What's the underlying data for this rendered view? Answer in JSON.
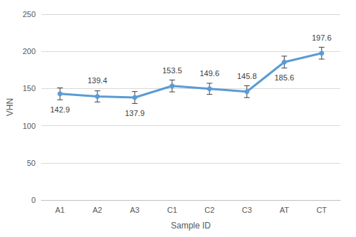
{
  "chart_data": {
    "type": "line",
    "x_label": "Sample ID",
    "y_label": "VHN",
    "categories": [
      "A1",
      "A2",
      "A3",
      "C1",
      "C2",
      "C3",
      "AT",
      "CT"
    ],
    "values": [
      142.9,
      139.4,
      137.9,
      153.5,
      149.6,
      145.8,
      185.6,
      197.6
    ],
    "errors": [
      8,
      7.5,
      8,
      8,
      7.5,
      8,
      8,
      8
    ],
    "color": "#5b9bd5",
    "marker": "circle",
    "ylim": [
      0,
      250
    ],
    "yticks": [
      0,
      50,
      100,
      150,
      200,
      250
    ],
    "grid": true,
    "data_labels": true
  }
}
